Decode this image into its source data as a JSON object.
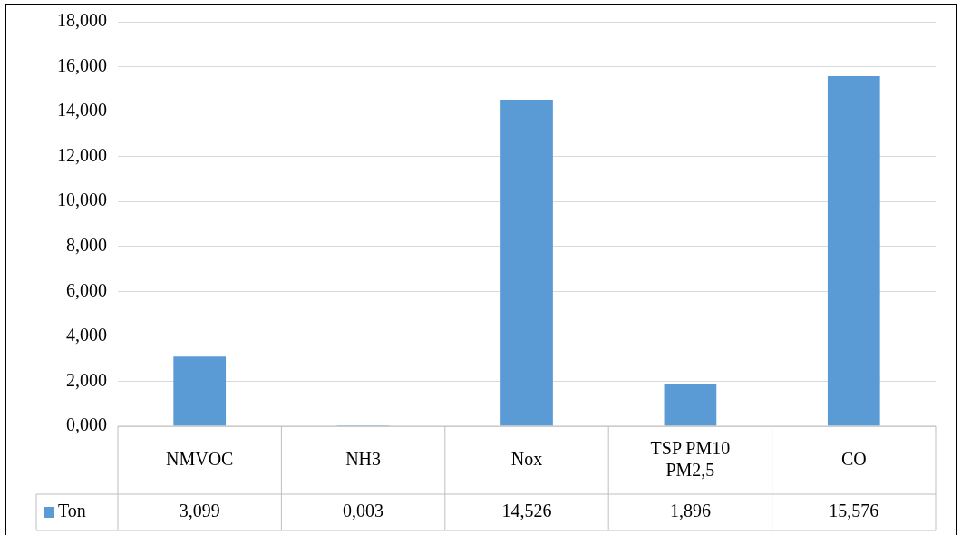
{
  "chart_data": {
    "type": "bar",
    "categories": [
      "NMVOC",
      "NH3",
      "Nox",
      "TSP PM10 PM2,5",
      "CO"
    ],
    "series": [
      {
        "name": "Ton",
        "color": "#5b9bd5",
        "values": [
          3.099,
          0.003,
          14.526,
          1.896,
          15.576
        ],
        "value_labels": [
          "3,099",
          "0,003",
          "14,526",
          "1,896",
          "15,576"
        ]
      }
    ],
    "ylim": [
      0,
      18
    ],
    "yticks": [
      {
        "value": 0,
        "label": "0,000"
      },
      {
        "value": 2,
        "label": "2,000"
      },
      {
        "value": 4,
        "label": "4,000"
      },
      {
        "value": 6,
        "label": "6,000"
      },
      {
        "value": 8,
        "label": "8,000"
      },
      {
        "value": 10,
        "label": "10,000"
      },
      {
        "value": 12,
        "label": "12,000"
      },
      {
        "value": 14,
        "label": "14,000"
      },
      {
        "value": 16,
        "label": "16,000"
      },
      {
        "value": 18,
        "label": "18,000"
      }
    ],
    "grid": "y",
    "legend": "bottom"
  }
}
